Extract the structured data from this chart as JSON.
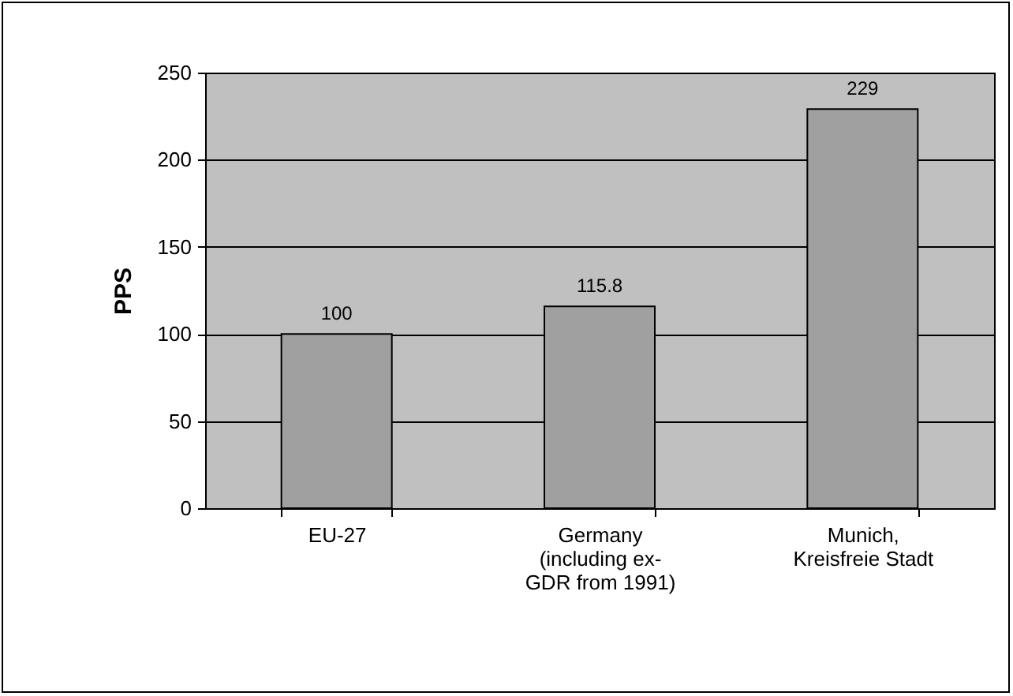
{
  "chart_data": {
    "type": "bar",
    "ylabel": "PPS",
    "categories": [
      "EU-27",
      "Germany (including ex-GDR from 1991)",
      "Munich, Kreisfreie Stadt"
    ],
    "values": [
      100,
      115.8,
      229
    ],
    "color": "#a0a0a0",
    "ylim": [
      0,
      250
    ],
    "yticks": [
      0,
      50,
      100,
      150,
      200,
      250
    ],
    "grid": "y",
    "data_labels": true
  }
}
